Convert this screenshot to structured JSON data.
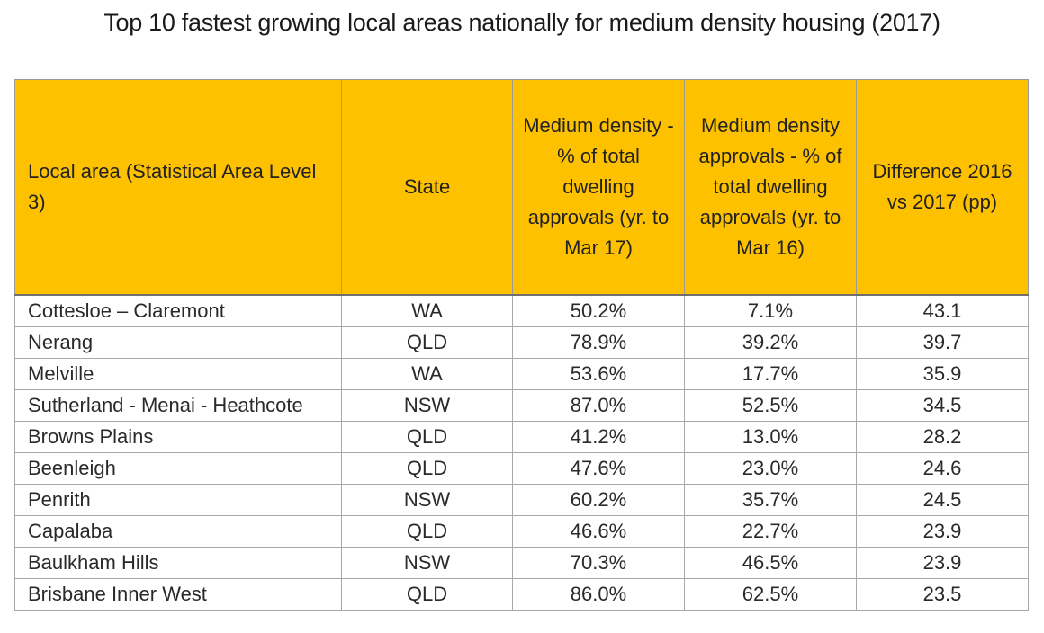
{
  "title": "Top 10 fastest growing local areas nationally for medium density housing (2017)",
  "colors": {
    "header_background": "#fdc100",
    "grid_lines": "#a8a8a8"
  },
  "table": {
    "headers": [
      "Local area (Statistical Area Level 3)",
      "State",
      "Medium density - % of total dwelling approvals (yr. to Mar 17)",
      "Medium density approvals - % of total dwelling approvals (yr. to Mar 16)",
      "Difference 2016 vs 2017 (pp)"
    ],
    "rows": [
      [
        "Cottesloe – Claremont",
        "WA",
        "50.2%",
        "7.1%",
        "43.1"
      ],
      [
        "Nerang",
        "QLD",
        "78.9%",
        "39.2%",
        "39.7"
      ],
      [
        "Melville",
        "WA",
        "53.6%",
        "17.7%",
        "35.9"
      ],
      [
        "Sutherland - Menai - Heathcote",
        "NSW",
        "87.0%",
        "52.5%",
        "34.5"
      ],
      [
        "Browns Plains",
        "QLD",
        "41.2%",
        "13.0%",
        "28.2"
      ],
      [
        "Beenleigh",
        "QLD",
        "47.6%",
        "23.0%",
        "24.6"
      ],
      [
        "Penrith",
        "NSW",
        "60.2%",
        "35.7%",
        "24.5"
      ],
      [
        "Capalaba",
        "QLD",
        "46.6%",
        "22.7%",
        "23.9"
      ],
      [
        "Baulkham Hills",
        "NSW",
        "70.3%",
        "46.5%",
        "23.9"
      ],
      [
        "Brisbane Inner West",
        "QLD",
        "86.0%",
        "62.5%",
        "23.5"
      ]
    ]
  }
}
